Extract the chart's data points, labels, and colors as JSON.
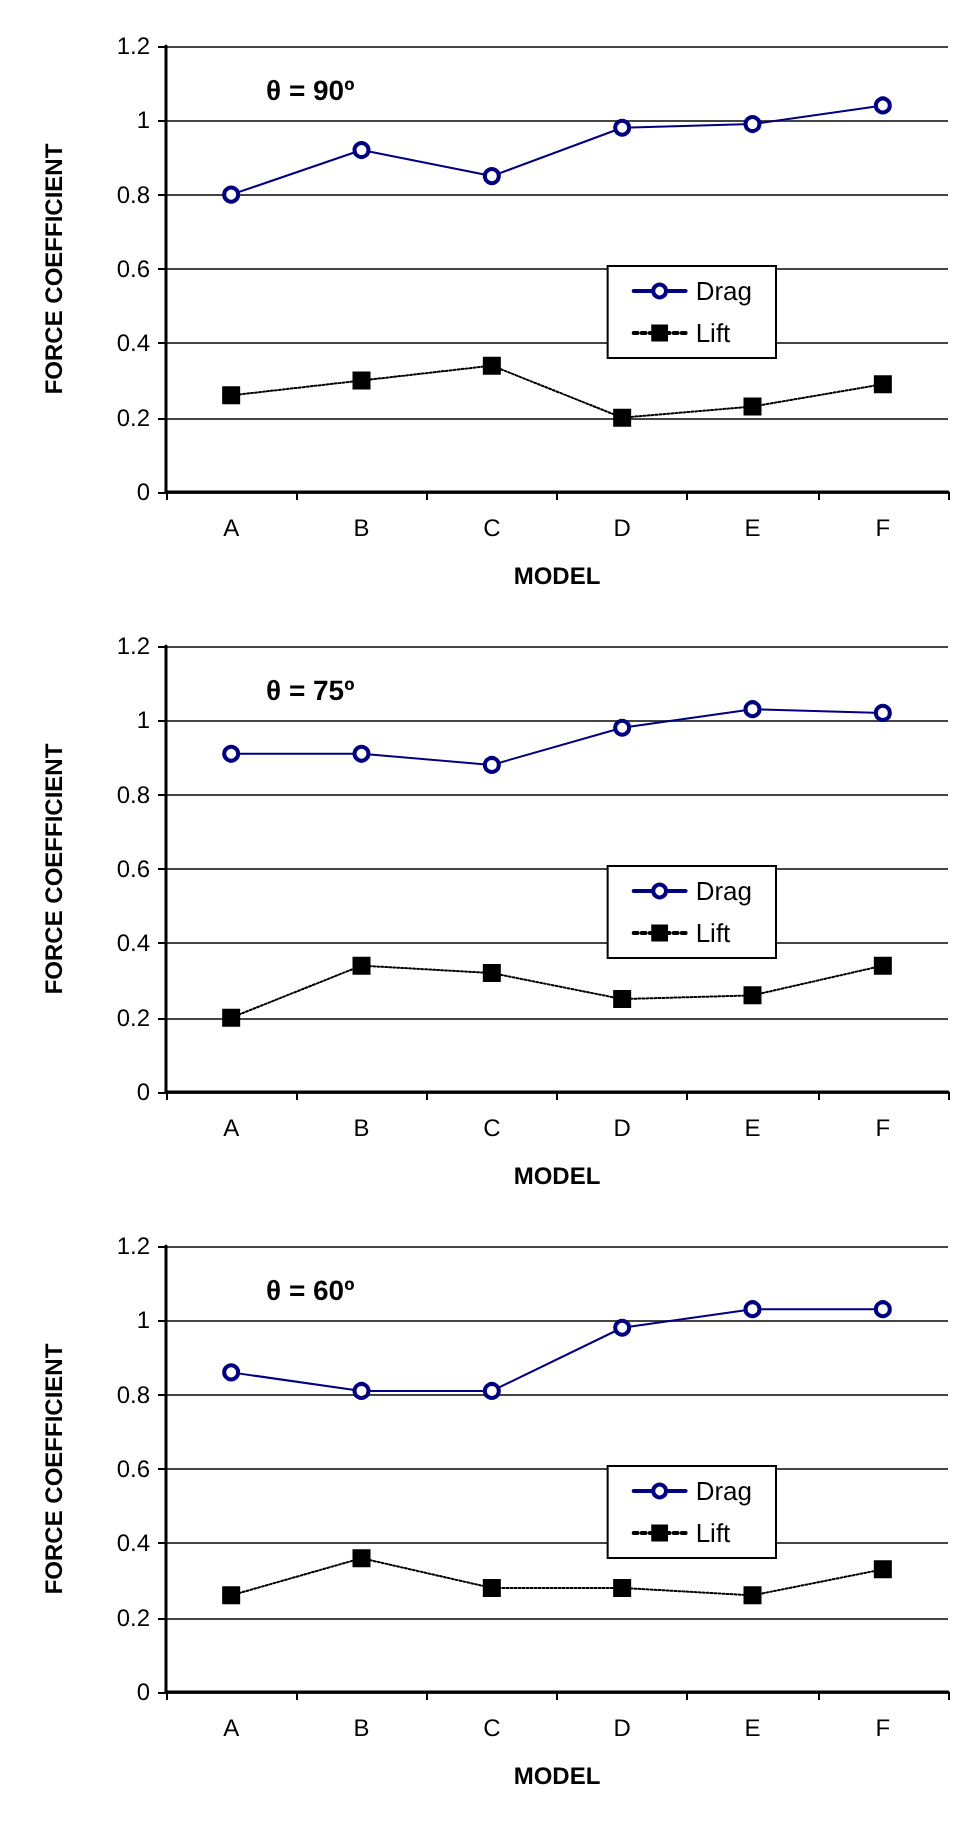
{
  "chart_data": [
    {
      "type": "line",
      "categories": [
        "A",
        "B",
        "C",
        "D",
        "E",
        "F"
      ],
      "xlabel": "MODEL",
      "ylabel": "FORCE COEFFICIENT",
      "annotations": [
        "θ = 90º"
      ],
      "ylim": [
        0,
        1.2
      ],
      "yticks": [
        0,
        0.2,
        0.4,
        0.6,
        0.8,
        1,
        1.2
      ],
      "grid": "y",
      "legend": "right",
      "series": [
        {
          "name": "Drag",
          "color": "#000080",
          "marker": "circle",
          "line_style": "solid",
          "values": [
            0.8,
            0.92,
            0.85,
            0.98,
            0.99,
            1.04
          ]
        },
        {
          "name": "Lift",
          "color": "#000000",
          "marker": "square",
          "line_style": "dotted",
          "values": [
            0.26,
            0.3,
            0.34,
            0.2,
            0.23,
            0.29
          ]
        }
      ]
    },
    {
      "type": "line",
      "categories": [
        "A",
        "B",
        "C",
        "D",
        "E",
        "F"
      ],
      "xlabel": "MODEL",
      "ylabel": "FORCE COEFFICIENT",
      "annotations": [
        "θ = 75º"
      ],
      "ylim": [
        0,
        1.2
      ],
      "yticks": [
        0,
        0.2,
        0.4,
        0.6,
        0.8,
        1,
        1.2
      ],
      "grid": "y",
      "legend": "right",
      "series": [
        {
          "name": "Drag",
          "color": "#000080",
          "marker": "circle",
          "line_style": "solid",
          "values": [
            0.91,
            0.91,
            0.88,
            0.98,
            1.03,
            1.02
          ]
        },
        {
          "name": "Lift",
          "color": "#000000",
          "marker": "square",
          "line_style": "dotted",
          "values": [
            0.2,
            0.34,
            0.32,
            0.25,
            0.26,
            0.34
          ]
        }
      ]
    },
    {
      "type": "line",
      "categories": [
        "A",
        "B",
        "C",
        "D",
        "E",
        "F"
      ],
      "xlabel": "MODEL",
      "ylabel": "FORCE COEFFICIENT",
      "annotations": [
        "θ = 60º"
      ],
      "ylim": [
        0,
        1.2
      ],
      "yticks": [
        0,
        0.2,
        0.4,
        0.6,
        0.8,
        1,
        1.2
      ],
      "grid": "y",
      "legend": "right",
      "series": [
        {
          "name": "Drag",
          "color": "#000080",
          "marker": "circle",
          "line_style": "solid",
          "values": [
            0.86,
            0.81,
            0.81,
            0.98,
            1.03,
            1.03
          ]
        },
        {
          "name": "Lift",
          "color": "#000000",
          "marker": "square",
          "line_style": "dotted",
          "values": [
            0.26,
            0.36,
            0.28,
            0.28,
            0.26,
            0.33
          ]
        }
      ]
    }
  ]
}
